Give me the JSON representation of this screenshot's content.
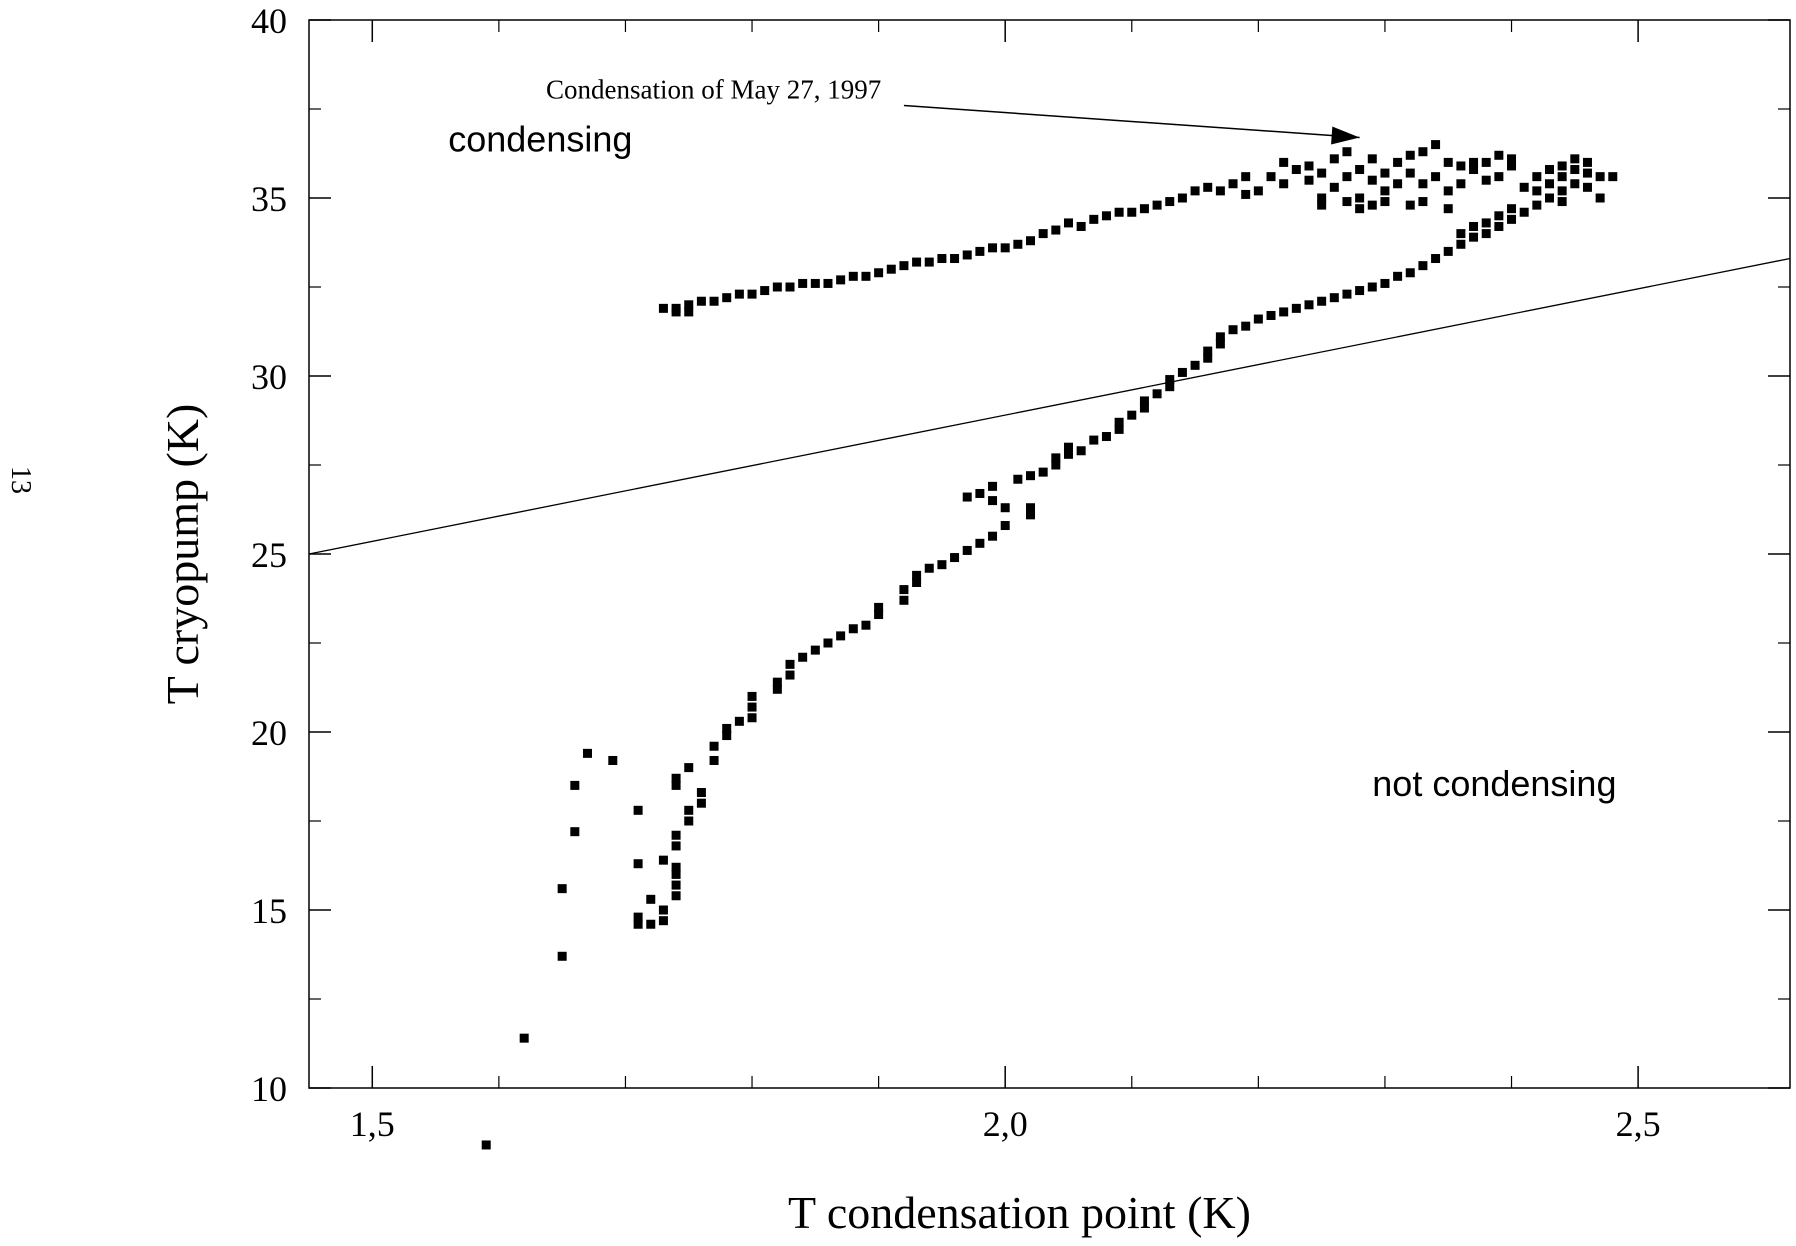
{
  "page_number": "13",
  "chart_data": {
    "type": "scatter",
    "title": "",
    "xlabel": "T condensation point (K)",
    "ylabel": "T cryopump (K)",
    "xlim": [
      1.45,
      2.62
    ],
    "ylim": [
      10,
      40
    ],
    "x_ticks": [
      {
        "value": 1.5,
        "label": "1,5"
      },
      {
        "value": 2.0,
        "label": "2,0"
      },
      {
        "value": 2.5,
        "label": "2,5"
      }
    ],
    "y_ticks": [
      {
        "value": 10,
        "label": "10"
      },
      {
        "value": 15,
        "label": "15"
      },
      {
        "value": 20,
        "label": "20"
      },
      {
        "value": 25,
        "label": "25"
      },
      {
        "value": 30,
        "label": "30"
      },
      {
        "value": 35,
        "label": "35"
      },
      {
        "value": 40,
        "label": "40"
      }
    ],
    "grid": false,
    "region_labels": [
      {
        "text": "condensing",
        "x": 1.56,
        "y": 36.3
      },
      {
        "text": "not condensing",
        "x": 2.29,
        "y": 18.2
      }
    ],
    "annotation": {
      "text": "Condensation of May 27, 1997",
      "text_x": 1.91,
      "text_y": 37.8,
      "arrow_from": [
        1.92,
        37.6
      ],
      "arrow_to": [
        2.28,
        36.7
      ]
    },
    "boundary_line": {
      "x": [
        1.45,
        2.62
      ],
      "y": [
        25.0,
        33.3
      ]
    },
    "points": [
      [
        1.59,
        8.4
      ],
      [
        1.62,
        11.4
      ],
      [
        1.65,
        13.7
      ],
      [
        1.65,
        15.6
      ],
      [
        1.66,
        17.2
      ],
      [
        1.66,
        18.5
      ],
      [
        1.67,
        19.4
      ],
      [
        1.69,
        19.2
      ],
      [
        1.71,
        17.8
      ],
      [
        1.71,
        16.3
      ],
      [
        1.71,
        14.8
      ],
      [
        1.71,
        14.6
      ],
      [
        1.72,
        14.6
      ],
      [
        1.72,
        15.3
      ],
      [
        1.73,
        14.7
      ],
      [
        1.73,
        15.0
      ],
      [
        1.73,
        16.4
      ],
      [
        1.74,
        15.4
      ],
      [
        1.74,
        15.7
      ],
      [
        1.74,
        16.0
      ],
      [
        1.74,
        16.2
      ],
      [
        1.74,
        16.8
      ],
      [
        1.74,
        17.1
      ],
      [
        1.74,
        18.5
      ],
      [
        1.74,
        18.7
      ],
      [
        1.75,
        19.0
      ],
      [
        1.75,
        17.5
      ],
      [
        1.75,
        17.8
      ],
      [
        1.76,
        18.0
      ],
      [
        1.76,
        18.3
      ],
      [
        1.77,
        19.2
      ],
      [
        1.77,
        19.6
      ],
      [
        1.78,
        19.9
      ],
      [
        1.78,
        20.1
      ],
      [
        1.79,
        20.3
      ],
      [
        1.8,
        20.4
      ],
      [
        1.8,
        20.7
      ],
      [
        1.8,
        21.0
      ],
      [
        1.82,
        21.2
      ],
      [
        1.82,
        21.4
      ],
      [
        1.83,
        21.6
      ],
      [
        1.83,
        21.9
      ],
      [
        1.84,
        22.1
      ],
      [
        1.85,
        22.3
      ],
      [
        1.86,
        22.5
      ],
      [
        1.87,
        22.7
      ],
      [
        1.88,
        22.9
      ],
      [
        1.89,
        23.0
      ],
      [
        1.9,
        23.3
      ],
      [
        1.9,
        23.5
      ],
      [
        1.92,
        23.7
      ],
      [
        1.92,
        24.0
      ],
      [
        1.93,
        24.2
      ],
      [
        1.93,
        24.4
      ],
      [
        1.94,
        24.6
      ],
      [
        1.95,
        24.7
      ],
      [
        1.96,
        24.9
      ],
      [
        1.97,
        25.1
      ],
      [
        1.97,
        26.6
      ],
      [
        1.98,
        26.7
      ],
      [
        1.98,
        25.3
      ],
      [
        1.99,
        25.5
      ],
      [
        1.99,
        26.9
      ],
      [
        1.99,
        26.5
      ],
      [
        2.0,
        25.8
      ],
      [
        2.0,
        26.3
      ],
      [
        2.01,
        27.1
      ],
      [
        2.02,
        27.2
      ],
      [
        2.02,
        26.1
      ],
      [
        2.02,
        26.3
      ],
      [
        2.03,
        27.3
      ],
      [
        2.04,
        27.5
      ],
      [
        2.04,
        27.7
      ],
      [
        2.05,
        27.8
      ],
      [
        2.05,
        28.0
      ],
      [
        2.06,
        27.9
      ],
      [
        2.07,
        28.2
      ],
      [
        2.08,
        28.3
      ],
      [
        2.09,
        28.5
      ],
      [
        2.09,
        28.7
      ],
      [
        2.1,
        28.9
      ],
      [
        2.11,
        29.1
      ],
      [
        2.11,
        29.3
      ],
      [
        2.12,
        29.5
      ],
      [
        2.13,
        29.7
      ],
      [
        2.13,
        29.9
      ],
      [
        2.14,
        30.1
      ],
      [
        2.15,
        30.3
      ],
      [
        2.16,
        30.5
      ],
      [
        2.16,
        30.7
      ],
      [
        2.17,
        30.9
      ],
      [
        2.17,
        31.1
      ],
      [
        2.18,
        31.3
      ],
      [
        2.19,
        31.4
      ],
      [
        2.2,
        31.6
      ],
      [
        2.21,
        31.7
      ],
      [
        2.22,
        31.8
      ],
      [
        2.23,
        31.9
      ],
      [
        2.24,
        32.0
      ],
      [
        2.25,
        32.1
      ],
      [
        2.26,
        32.2
      ],
      [
        2.27,
        32.3
      ],
      [
        2.28,
        32.4
      ],
      [
        2.29,
        32.5
      ],
      [
        2.3,
        32.6
      ],
      [
        2.31,
        32.8
      ],
      [
        2.32,
        32.9
      ],
      [
        2.33,
        33.1
      ],
      [
        2.34,
        33.3
      ],
      [
        2.35,
        33.5
      ],
      [
        2.36,
        33.7
      ],
      [
        2.36,
        34.0
      ],
      [
        2.37,
        33.9
      ],
      [
        2.37,
        34.2
      ],
      [
        2.38,
        34.0
      ],
      [
        2.38,
        34.3
      ],
      [
        2.39,
        34.2
      ],
      [
        2.39,
        34.5
      ],
      [
        2.4,
        34.4
      ],
      [
        2.4,
        34.7
      ],
      [
        2.41,
        34.6
      ],
      [
        2.42,
        34.8
      ],
      [
        2.42,
        35.2
      ],
      [
        2.43,
        35.0
      ],
      [
        2.43,
        35.4
      ],
      [
        2.44,
        35.2
      ],
      [
        2.44,
        35.6
      ],
      [
        2.45,
        35.4
      ],
      [
        2.45,
        35.8
      ],
      [
        2.46,
        35.3
      ],
      [
        2.46,
        35.7
      ],
      [
        2.47,
        35.6
      ],
      [
        2.48,
        35.6
      ],
      [
        2.46,
        36.0
      ],
      [
        2.45,
        36.1
      ],
      [
        2.44,
        35.9
      ],
      [
        2.43,
        35.8
      ],
      [
        2.44,
        34.9
      ],
      [
        2.47,
        35.0
      ],
      [
        2.42,
        35.6
      ],
      [
        2.41,
        35.3
      ],
      [
        2.4,
        36.1
      ],
      [
        2.4,
        35.9
      ],
      [
        2.39,
        35.6
      ],
      [
        2.39,
        36.2
      ],
      [
        2.38,
        36.0
      ],
      [
        2.38,
        35.5
      ],
      [
        2.37,
        35.8
      ],
      [
        2.37,
        36.0
      ],
      [
        2.36,
        35.9
      ],
      [
        2.36,
        35.4
      ],
      [
        2.35,
        36.0
      ],
      [
        2.35,
        35.2
      ],
      [
        2.34,
        36.5
      ],
      [
        2.34,
        35.6
      ],
      [
        2.33,
        36.3
      ],
      [
        2.33,
        35.4
      ],
      [
        2.32,
        35.7
      ],
      [
        2.32,
        36.2
      ],
      [
        2.31,
        35.4
      ],
      [
        2.31,
        36.0
      ],
      [
        2.3,
        35.7
      ],
      [
        2.3,
        35.2
      ],
      [
        2.29,
        36.1
      ],
      [
        2.29,
        35.5
      ],
      [
        2.28,
        35.8
      ],
      [
        2.28,
        35.0
      ],
      [
        2.27,
        36.3
      ],
      [
        2.27,
        35.6
      ],
      [
        2.26,
        35.3
      ],
      [
        2.26,
        36.1
      ],
      [
        2.25,
        35.7
      ],
      [
        2.25,
        35.0
      ],
      [
        2.24,
        35.9
      ],
      [
        2.24,
        35.5
      ],
      [
        2.23,
        35.8
      ],
      [
        2.22,
        35.4
      ],
      [
        2.22,
        36.0
      ],
      [
        2.21,
        35.6
      ],
      [
        2.2,
        35.2
      ],
      [
        2.19,
        35.6
      ],
      [
        2.19,
        35.1
      ],
      [
        2.18,
        35.4
      ],
      [
        2.17,
        35.2
      ],
      [
        2.16,
        35.3
      ],
      [
        2.15,
        35.2
      ],
      [
        2.14,
        35.0
      ],
      [
        2.13,
        34.9
      ],
      [
        2.12,
        34.8
      ],
      [
        2.11,
        34.7
      ],
      [
        2.1,
        34.6
      ],
      [
        2.09,
        34.6
      ],
      [
        2.08,
        34.5
      ],
      [
        2.07,
        34.4
      ],
      [
        2.06,
        34.2
      ],
      [
        2.05,
        34.3
      ],
      [
        2.04,
        34.1
      ],
      [
        2.03,
        34.0
      ],
      [
        2.02,
        33.8
      ],
      [
        2.01,
        33.7
      ],
      [
        2.0,
        33.6
      ],
      [
        1.99,
        33.6
      ],
      [
        1.98,
        33.5
      ],
      [
        1.97,
        33.4
      ],
      [
        1.96,
        33.3
      ],
      [
        1.95,
        33.3
      ],
      [
        1.94,
        33.2
      ],
      [
        1.93,
        33.2
      ],
      [
        1.92,
        33.1
      ],
      [
        1.91,
        33.0
      ],
      [
        1.9,
        32.9
      ],
      [
        1.89,
        32.8
      ],
      [
        1.88,
        32.8
      ],
      [
        1.87,
        32.7
      ],
      [
        1.86,
        32.6
      ],
      [
        1.85,
        32.6
      ],
      [
        1.84,
        32.6
      ],
      [
        1.83,
        32.5
      ],
      [
        1.82,
        32.5
      ],
      [
        1.81,
        32.4
      ],
      [
        1.8,
        32.3
      ],
      [
        1.79,
        32.3
      ],
      [
        1.78,
        32.2
      ],
      [
        1.77,
        32.1
      ],
      [
        1.76,
        32.1
      ],
      [
        1.75,
        32.0
      ],
      [
        1.74,
        31.9
      ],
      [
        1.73,
        31.9
      ],
      [
        1.75,
        31.8
      ],
      [
        1.74,
        31.8
      ],
      [
        2.28,
        34.7
      ],
      [
        2.29,
        34.8
      ],
      [
        2.32,
        34.8
      ],
      [
        2.35,
        34.7
      ],
      [
        2.33,
        34.9
      ],
      [
        2.3,
        34.9
      ],
      [
        2.27,
        34.9
      ],
      [
        2.25,
        34.8
      ]
    ]
  }
}
